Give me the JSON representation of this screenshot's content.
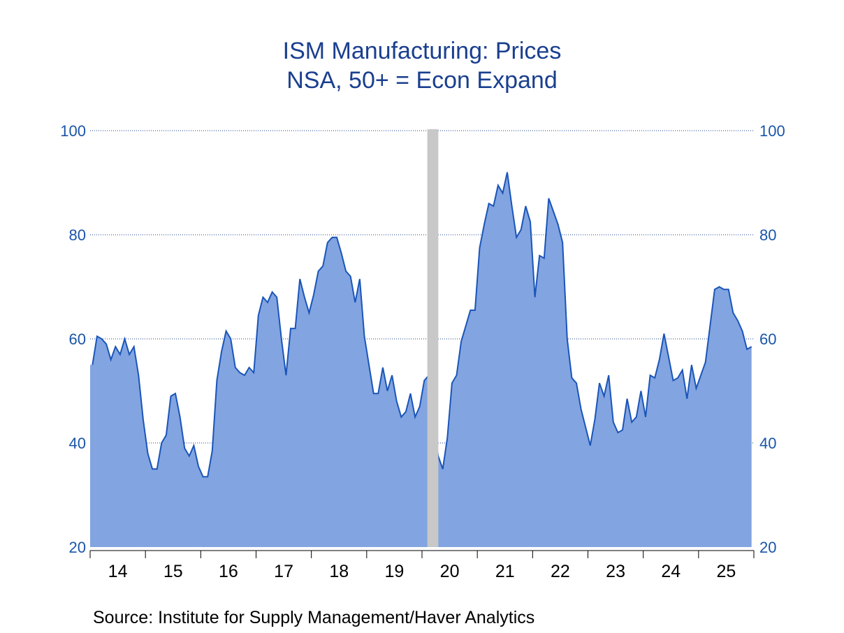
{
  "chart_data": {
    "type": "area",
    "title": "ISM Manufacturing: Prices",
    "subtitle": "NSA, 50+ = Econ Expand",
    "source": "Source:  Institute for Supply Management/Haver Analytics",
    "xlabel": "",
    "ylabel": "",
    "ylim": [
      20,
      100
    ],
    "yticks": [
      20,
      40,
      60,
      80,
      100
    ],
    "ytick_labels": [
      "20",
      "40",
      "60",
      "80",
      "100"
    ],
    "x_range": [
      "2014-01",
      "2025-12"
    ],
    "xtick_labels": [
      "14",
      "15",
      "16",
      "17",
      "18",
      "19",
      "20",
      "21",
      "22",
      "23",
      "24",
      "25"
    ],
    "grid": true,
    "grid_style": "dotted horizontal at each y tick",
    "dual_y_axis": true,
    "recession_shading": [
      {
        "start": "2020-02",
        "end": "2020-04",
        "color": "#c8c8c8"
      }
    ],
    "colors": {
      "line": "#1a55b8",
      "fill": "#82a4e0",
      "title": "#1a3f8f",
      "tick": "#1a55a8",
      "shade": "#c8c8c8"
    },
    "series": [
      {
        "name": "ISM Manufacturing Prices (NSA)",
        "start": "2014-01",
        "frequency": "monthly",
        "values": [
          55.0,
          60.5,
          60.0,
          59.0,
          56.0,
          58.5,
          57.0,
          60.0,
          57.0,
          58.5,
          53.0,
          44.5,
          38.0,
          35.0,
          35.0,
          40.0,
          41.5,
          49.0,
          49.5,
          45.0,
          39.0,
          37.5,
          39.5,
          35.5,
          33.5,
          33.5,
          38.5,
          52.0,
          57.5,
          61.5,
          60.0,
          54.5,
          53.5,
          53.0,
          54.5,
          53.5,
          64.5,
          68.0,
          67.0,
          69.0,
          68.0,
          60.0,
          53.0,
          62.0,
          62.0,
          71.5,
          68.0,
          65.0,
          68.5,
          73.0,
          74.0,
          78.5,
          79.5,
          79.5,
          76.5,
          73.0,
          72.0,
          67.0,
          71.5,
          60.5,
          55.0,
          49.5,
          49.5,
          54.5,
          50.0,
          53.0,
          48.0,
          45.0,
          46.0,
          49.5,
          45.0,
          47.0,
          52.0,
          53.0,
          44.5,
          37.5,
          35.0,
          41.0,
          51.5,
          53.0,
          59.5,
          62.5,
          65.5,
          65.5,
          77.5,
          82.0,
          86.0,
          85.5,
          89.5,
          88.0,
          92.0,
          85.5,
          79.5,
          81.0,
          85.5,
          82.5,
          68.0,
          76.0,
          75.5,
          87.0,
          84.5,
          82.0,
          78.5,
          60.0,
          52.5,
          51.5,
          46.5,
          43.0,
          39.5,
          44.5,
          51.5,
          49.0,
          53.0,
          44.0,
          42.0,
          42.5,
          48.5,
          44.0,
          45.0,
          50.0,
          45.0,
          53.0,
          52.5,
          56.0,
          61.0,
          56.5,
          52.0,
          52.5,
          54.0,
          48.5,
          55.0,
          50.5,
          53.0,
          55.5,
          62.5,
          69.5,
          70.0,
          69.5,
          69.5,
          65.0,
          63.5,
          61.5,
          58.0,
          58.5
        ]
      }
    ]
  }
}
